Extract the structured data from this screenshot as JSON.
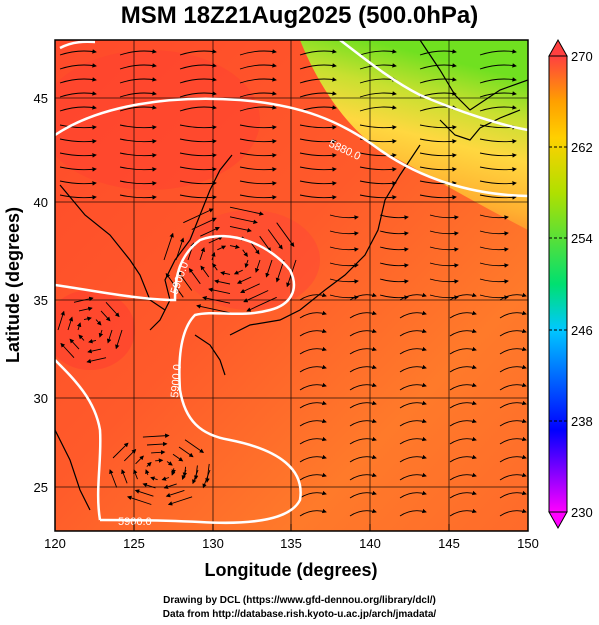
{
  "title": "MSM 18Z21Aug2025 (500.0hPa)",
  "x_axis": {
    "title": "Longitude (degrees)",
    "ticks": [
      120,
      125,
      130,
      135,
      140,
      145,
      150
    ],
    "range": [
      120,
      150
    ]
  },
  "y_axis": {
    "title": "Latitude  (degrees)",
    "ticks": [
      25,
      30,
      35,
      40,
      45
    ],
    "range": [
      22.4,
      47.6
    ]
  },
  "colorbar": {
    "ticks": [
      230,
      238,
      246,
      254,
      262,
      270
    ],
    "range": [
      230,
      270
    ],
    "colors": [
      "#ff00ff",
      "#0000ff",
      "#00c8ff",
      "#00e070",
      "#b0e000",
      "#ffb400",
      "#ff4040"
    ]
  },
  "contours": [
    {
      "label": "5880.0",
      "label_lon": 132.5,
      "label_lat": 42.6
    },
    {
      "label": "5900.0",
      "label_lon": 127.5,
      "label_lat": 36.8
    },
    {
      "label": "5900.0",
      "label_lon": 127.0,
      "label_lat": 29.8
    },
    {
      "label": "5900.0",
      "label_lon": 126.0,
      "label_lat": 23.3
    }
  ],
  "field_colors": {
    "warm": "#ff4a2a",
    "mid": "#ff7a2a",
    "orange": "#ff9b30",
    "yellow": "#ffd840",
    "green": "#80e020"
  },
  "credits": {
    "line1": "Drawing by DCL (https://www.gfd-dennou.org/library/dcl/)",
    "line2": "Data from http://database.rish.kyoto-u.ac.jp/arch/jmadata/"
  }
}
